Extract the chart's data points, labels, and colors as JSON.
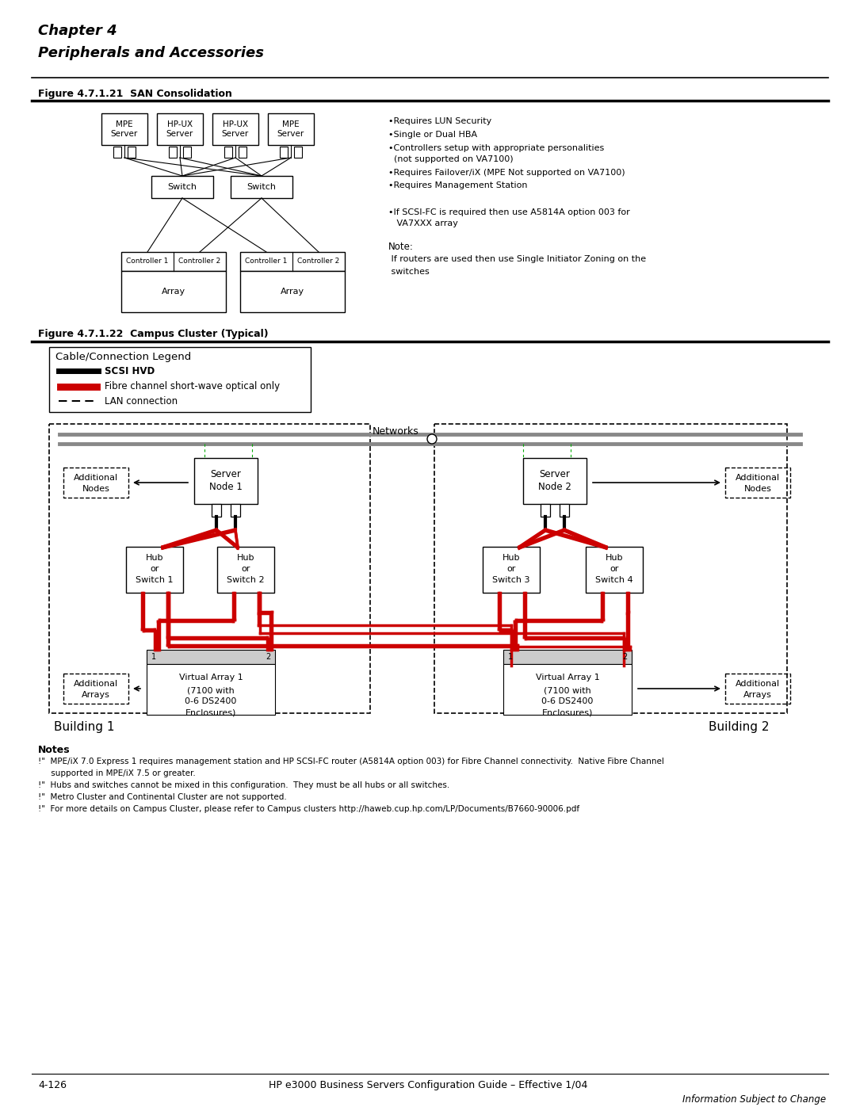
{
  "title_line1": "Chapter 4",
  "title_line2": "Peripherals and Accessories",
  "fig_label1": "Figure 4.7.1.21  SAN Consolidation",
  "fig_label2": "Figure 4.7.1.22  Campus Cluster (Typical)",
  "bg_color": "#ffffff",
  "red_color": "#cc0000",
  "gray_color": "#888888",
  "legend_items": [
    "SCSI HVD",
    "Fibre channel short-wave optical only",
    "LAN connection"
  ],
  "san_servers": [
    "MPE\nServer",
    "HP-UX\nServer",
    "HP-UX\nServer",
    "MPE\nServer"
  ],
  "bullet_notes": [
    "•Requires LUN Security",
    "•Single or Dual HBA",
    "•Controllers setup with appropriate personalities",
    "  (not supported on VA7100)",
    "•Requires Failover/iX (MPE Not supported on VA7100)",
    "•Requires Management Station",
    "",
    "•If SCSI-FC is required then use A5814A option 003 for",
    "   VA7XXX array"
  ],
  "note_text": "Note:\n  If routers are used then use Single Initiator Zoning on the\n  switches",
  "notes_footer": [
    "Notes",
    "!\"  MPE/iX 7.0 Express 1 requires management station and HP SCSI-FC router (A5814A option 003) for Fibre Channel connectivity.  Native Fibre Channel",
    "     supported in MPE/iX 7.5 or greater.",
    "!\"  Hubs and switches cannot be mixed in this configuration.  They must be all hubs or all switches.",
    "!\"  Metro Cluster and Continental Cluster are not supported.",
    "!\"  For more details on Campus Cluster, please refer to Campus clusters http://haweb.cup.hp.com/LP/Documents/B7660-90006.pdf"
  ],
  "footer_left": "4-126",
  "footer_center": "HP e3000 Business Servers Configuration Guide – Effective 1/04",
  "footer_right": "Information Subject to Change"
}
